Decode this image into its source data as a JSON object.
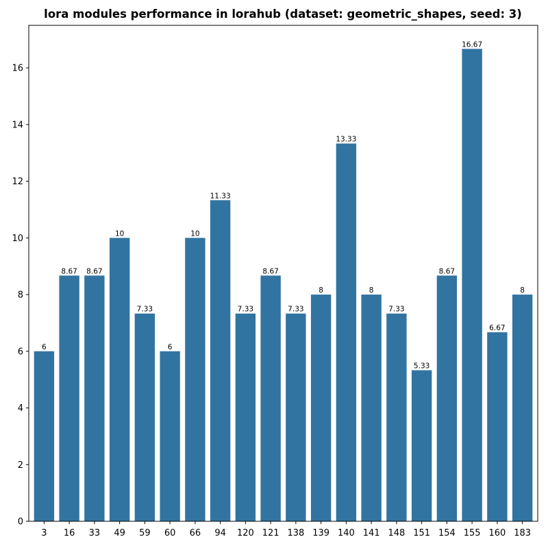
{
  "chart_data": {
    "type": "bar",
    "title": "lora modules performance in lorahub (dataset: geometric_shapes, seed: 3)",
    "xlabel": "",
    "ylabel": "",
    "categories": [
      "3",
      "16",
      "33",
      "49",
      "59",
      "60",
      "66",
      "94",
      "120",
      "121",
      "138",
      "139",
      "140",
      "141",
      "148",
      "151",
      "154",
      "155",
      "160",
      "183"
    ],
    "values": [
      6,
      8.67,
      8.67,
      10,
      7.33,
      6,
      10,
      11.33,
      7.33,
      8.67,
      7.33,
      8,
      13.33,
      8,
      7.33,
      5.33,
      8.67,
      16.67,
      6.67,
      8
    ],
    "data_labels": [
      "6",
      "8.67",
      "8.67",
      "10",
      "7.33",
      "6",
      "10",
      "11.33",
      "7.33",
      "8.67",
      "7.33",
      "8",
      "13.33",
      "8",
      "7.33",
      "5.33",
      "8.67",
      "16.67",
      "6.67",
      "8"
    ],
    "ylim": [
      0,
      17.5
    ],
    "yticks": [
      0,
      2,
      4,
      6,
      8,
      10,
      12,
      14,
      16
    ],
    "grid": false,
    "legend": "none",
    "bar_color": "#3274a1"
  }
}
